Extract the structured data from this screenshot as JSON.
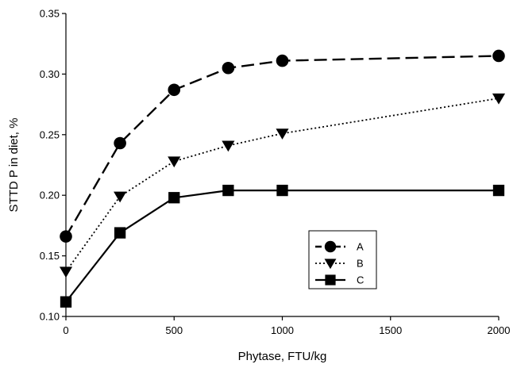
{
  "chart_data": {
    "type": "line",
    "title": "",
    "xlabel": "Phytase, FTU/kg",
    "ylabel": "STTD P in diet, %",
    "x_ticks": [
      "0",
      "500",
      "1000",
      "1500",
      "2000"
    ],
    "x_tick_values": [
      0,
      500,
      1000,
      1500,
      2000
    ],
    "y_ticks": [
      "0.10",
      "0.15",
      "0.20",
      "0.25",
      "0.30",
      "0.35"
    ],
    "y_tick_values": [
      0.1,
      0.15,
      0.2,
      0.25,
      0.3,
      0.35
    ],
    "xlim": [
      0,
      2000
    ],
    "ylim": [
      0.1,
      0.35
    ],
    "grid": false,
    "legend_position": "lower-right",
    "series": [
      {
        "name": "A",
        "line_style": "dashed",
        "marker": "circle",
        "color": "#000000",
        "x": [
          0,
          250,
          500,
          750,
          1000,
          2000
        ],
        "y": [
          0.166,
          0.243,
          0.287,
          0.305,
          0.311,
          0.315
        ]
      },
      {
        "name": "B",
        "line_style": "dotted",
        "marker": "triangle-down",
        "color": "#000000",
        "x": [
          0,
          250,
          500,
          750,
          1000,
          2000
        ],
        "y": [
          0.137,
          0.199,
          0.228,
          0.241,
          0.251,
          0.28
        ]
      },
      {
        "name": "C",
        "line_style": "solid",
        "marker": "square",
        "color": "#000000",
        "x": [
          0,
          250,
          500,
          750,
          1000,
          2000
        ],
        "y": [
          0.112,
          0.169,
          0.198,
          0.204,
          0.204,
          0.204
        ]
      }
    ]
  }
}
